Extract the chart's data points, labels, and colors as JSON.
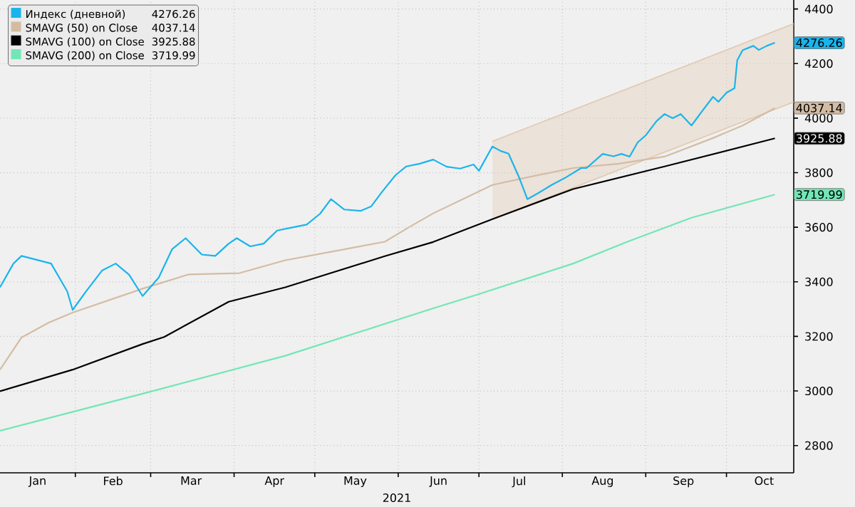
{
  "chart_data": {
    "type": "line",
    "xlabel": "2021",
    "legend": "top left",
    "grid": true,
    "line_style": "solid",
    "marker": "none",
    "xlim": [
      "2021-01-04",
      "2021-10-26"
    ],
    "ylim": [
      2700,
      4433
    ],
    "xticks": [
      {
        "value": "2021-02-01",
        "label": null
      },
      {
        "value": "2021-03-01",
        "label": null
      },
      {
        "value": "2021-04-01",
        "label": null
      },
      {
        "value": "2021-05-01",
        "label": null
      },
      {
        "value": "2021-06-01",
        "label": null
      },
      {
        "value": "2021-07-01",
        "label": null
      },
      {
        "value": "2021-08-01",
        "label": null
      },
      {
        "value": "2021-09-01",
        "label": null
      },
      {
        "value": "2021-10-01",
        "label": null
      },
      {
        "value": "2021-01-18",
        "label": "Jan"
      },
      {
        "value": "2021-02-15",
        "label": "Feb"
      },
      {
        "value": "2021-03-16",
        "label": "Mar"
      },
      {
        "value": "2021-04-16",
        "label": "Apr"
      },
      {
        "value": "2021-05-16",
        "label": "May"
      },
      {
        "value": "2021-06-16",
        "label": "Jun"
      },
      {
        "value": "2021-07-16",
        "label": "Jul"
      },
      {
        "value": "2021-08-16",
        "label": "Aug"
      },
      {
        "value": "2021-09-15",
        "label": "Sep"
      },
      {
        "value": "2021-10-15",
        "label": "Oct"
      }
    ],
    "yticks": [
      2800,
      3000,
      3200,
      3400,
      3600,
      3800,
      4000,
      4200,
      4400
    ],
    "series": [
      {
        "name": "Индекс (дневной)",
        "color": "#1ab4ec",
        "x": [
          "2021-01-04",
          "2021-01-09",
          "2021-01-12",
          "2021-01-23",
          "2021-01-29",
          "2021-01-31",
          "2021-02-05",
          "2021-02-11",
          "2021-02-16",
          "2021-02-21",
          "2021-02-26",
          "2021-03-04",
          "2021-03-09",
          "2021-03-14",
          "2021-03-20",
          "2021-03-25",
          "2021-03-30",
          "2021-04-02",
          "2021-04-07",
          "2021-04-12",
          "2021-04-17",
          "2021-04-22",
          "2021-04-28",
          "2021-05-03",
          "2021-05-07",
          "2021-05-12",
          "2021-05-18",
          "2021-05-22",
          "2021-05-26",
          "2021-05-31",
          "2021-06-04",
          "2021-06-09",
          "2021-06-14",
          "2021-06-19",
          "2021-06-24",
          "2021-06-29",
          "2021-07-01",
          "2021-07-06",
          "2021-07-09",
          "2021-07-12",
          "2021-07-16",
          "2021-07-19",
          "2021-07-23",
          "2021-07-28",
          "2021-08-02",
          "2021-08-08",
          "2021-08-10",
          "2021-08-16",
          "2021-08-20",
          "2021-08-23",
          "2021-08-26",
          "2021-08-29",
          "2021-09-01",
          "2021-09-05",
          "2021-09-08",
          "2021-09-11",
          "2021-09-14",
          "2021-09-18",
          "2021-09-22",
          "2021-09-26",
          "2021-09-28",
          "2021-10-01",
          "2021-10-04",
          "2021-10-05",
          "2021-10-07",
          "2021-10-11",
          "2021-10-13",
          "2021-10-16",
          "2021-10-19"
        ],
        "values": [
          3380,
          3467,
          3495,
          3467,
          3365,
          3297,
          3365,
          3442,
          3467,
          3426,
          3348,
          3416,
          3520,
          3560,
          3500,
          3495,
          3540,
          3560,
          3530,
          3540,
          3588,
          3598,
          3610,
          3650,
          3703,
          3665,
          3660,
          3677,
          3730,
          3791,
          3823,
          3833,
          3848,
          3822,
          3815,
          3830,
          3807,
          3896,
          3880,
          3870,
          3781,
          3703,
          3725,
          3755,
          3781,
          3817,
          3817,
          3869,
          3860,
          3869,
          3859,
          3911,
          3937,
          3989,
          4015,
          4000,
          4015,
          3973,
          4026,
          4078,
          4060,
          4093,
          4110,
          4212,
          4249,
          4265,
          4250,
          4265,
          4276.26
        ]
      },
      {
        "name": "SMAVG (50)  on Close",
        "color": "#d4bca4",
        "x": [
          "2021-01-04",
          "2021-01-12",
          "2021-01-22",
          "2021-01-31",
          "2021-02-26",
          "2021-03-15",
          "2021-04-03",
          "2021-04-20",
          "2021-05-07",
          "2021-05-27",
          "2021-06-05",
          "2021-06-14",
          "2021-07-06",
          "2021-07-18",
          "2021-08-05",
          "2021-08-22",
          "2021-09-08",
          "2021-09-26",
          "2021-10-07",
          "2021-10-19"
        ],
        "values": [
          3078,
          3196,
          3250,
          3287,
          3375,
          3427,
          3432,
          3479,
          3510,
          3547,
          3600,
          3651,
          3755,
          3781,
          3817,
          3833,
          3859,
          3927,
          3973,
          4037.14
        ]
      },
      {
        "name": "SMAVG (100)  on Close",
        "color": "#000000",
        "x": [
          "2021-01-04",
          "2021-01-31",
          "2021-02-26",
          "2021-03-06",
          "2021-03-30",
          "2021-04-20",
          "2021-05-27",
          "2021-06-14",
          "2021-07-06",
          "2021-08-05",
          "2021-09-08",
          "2021-10-19"
        ],
        "values": [
          2999,
          3078,
          3172,
          3198,
          3327,
          3380,
          3494,
          3546,
          3630,
          3740,
          3823,
          3925.88
        ]
      },
      {
        "name": "SMAVG (200)  on Close",
        "color": "#72e6b6",
        "x": [
          "2021-01-04",
          "2021-02-26",
          "2021-04-20",
          "2021-06-14",
          "2021-07-01",
          "2021-08-05",
          "2021-08-25",
          "2021-09-18",
          "2021-10-19"
        ],
        "values": [
          2854,
          2990,
          3129,
          3303,
          3355,
          3467,
          3546,
          3635,
          3719.99
        ]
      },
      {
        "color": "#e2c8ae",
        "x": [
          "2021-07-06",
          "2021-10-26"
        ],
        "values": [
          3915,
          4346
        ],
        "lower": [
          3630,
          4059
        ],
        "upper": [
          3915,
          4346
        ]
      },
      {
        "color": "#e2c8ae",
        "x": [
          "2021-07-06",
          "2021-10-26"
        ],
        "values": [
          3630,
          4059
        ]
      }
    ],
    "annotations": [
      "4276.26",
      "4037.14",
      "3925.88",
      "3719.99"
    ]
  }
}
